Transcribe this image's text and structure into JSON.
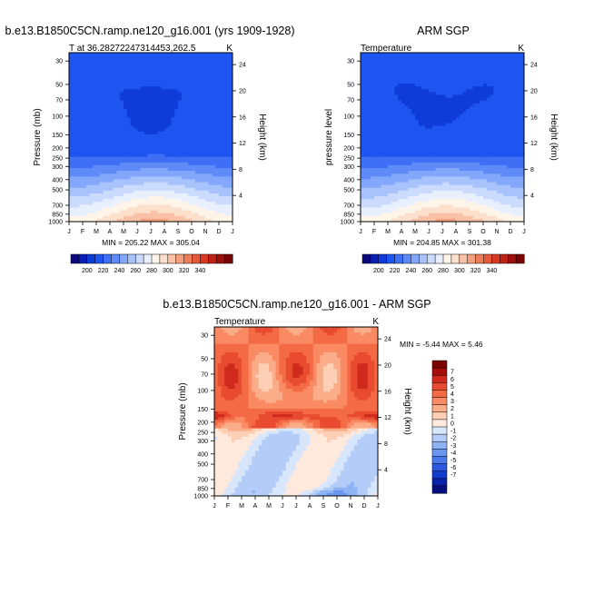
{
  "chart_data": [
    {
      "type": "heatmap",
      "title": "b.e13.B1850C5CN.ramp.ne120_g16.001 (yrs 1909-1928)",
      "subtitle_left": "T at 36.28272247314453,262.5",
      "subtitle_right": "K",
      "xlabel": "",
      "ylabel": "Pressure (mb)",
      "ylabel_right": "Height (km)",
      "x_ticks": [
        "J",
        "F",
        "M",
        "A",
        "M",
        "J",
        "J",
        "A",
        "S",
        "O",
        "N",
        "D",
        "J"
      ],
      "y_ticks": [
        30,
        50,
        70,
        100,
        150,
        200,
        250,
        300,
        400,
        500,
        700,
        850,
        1000
      ],
      "y_range": [
        25,
        1000
      ],
      "height_ticks": [
        4,
        8,
        12,
        16,
        20,
        24
      ],
      "stats": "MIN = 205.22  MAX = 305.04",
      "min": 205.22,
      "max": 305.04,
      "colorbar": {
        "orientation": "horizontal",
        "labels": [
          "200",
          "220",
          "240",
          "260",
          "280",
          "300",
          "320",
          "340"
        ],
        "colors": [
          "#0a0a7c",
          "#0a1fb5",
          "#0f3cd8",
          "#1e55f0",
          "#3e6ff5",
          "#5e8bf7",
          "#83a7fa",
          "#a8c3fc",
          "#cbdbfd",
          "#e8f0fe",
          "#fff4e8",
          "#fde0cc",
          "#f9c2a6",
          "#f4a07e",
          "#ee7d5a",
          "#e65a3c",
          "#d83a24",
          "#bf2216",
          "#9e100c",
          "#7a0404"
        ]
      }
    },
    {
      "type": "heatmap",
      "title": "ARM SGP",
      "subtitle_left": "Temperature",
      "subtitle_right": "K",
      "ylabel": "pressure level",
      "ylabel_right": "Height (km)",
      "x_ticks": [
        "J",
        "F",
        "M",
        "A",
        "M",
        "J",
        "J",
        "A",
        "S",
        "O",
        "N",
        "D",
        "J"
      ],
      "y_ticks": [
        30,
        50,
        70,
        100,
        150,
        200,
        250,
        300,
        400,
        500,
        700,
        850,
        1000
      ],
      "y_range": [
        25,
        1000
      ],
      "height_ticks": [
        4,
        8,
        12,
        16,
        20,
        24
      ],
      "stats": "MIN = 204.85  MAX = 301.38",
      "min": 204.85,
      "max": 301.38,
      "colorbar": {
        "orientation": "horizontal",
        "labels": [
          "200",
          "220",
          "240",
          "260",
          "280",
          "300",
          "320",
          "340"
        ]
      }
    },
    {
      "type": "heatmap",
      "title": "b.e13.B1850C5CN.ramp.ne120_g16.001 - ARM SGP",
      "subtitle_left": "Temperature",
      "subtitle_right": "K",
      "ylabel": "Pressure (mb)",
      "ylabel_right": "Height (km)",
      "x_ticks": [
        "J",
        "F",
        "M",
        "A",
        "M",
        "J",
        "J",
        "A",
        "S",
        "O",
        "N",
        "D",
        "J"
      ],
      "y_ticks": [
        30,
        50,
        70,
        100,
        150,
        200,
        250,
        300,
        400,
        500,
        700,
        850,
        1000
      ],
      "y_range": [
        25,
        1000
      ],
      "height_ticks": [
        4,
        8,
        12,
        16,
        20,
        24
      ],
      "stats": "MIN =  -5.44  MAX =    5.46",
      "min": -5.44,
      "max": 5.46,
      "colorbar": {
        "orientation": "vertical",
        "labels": [
          "7",
          "6",
          "5",
          "4",
          "3",
          "2",
          "1",
          "0",
          "-1",
          "-2",
          "-3",
          "-4",
          "-5",
          "-6",
          "-7"
        ],
        "colors": [
          "#7a0404",
          "#a70e0b",
          "#cf2a1c",
          "#e84b2f",
          "#f46a44",
          "#f98a63",
          "#fbad8a",
          "#fdd0b5",
          "#fee9dc",
          "#d7e6fb",
          "#b3cdf8",
          "#8eb3f4",
          "#6b96ef",
          "#4a78ea",
          "#2c58e0",
          "#143ccc",
          "#0a22a8",
          "#060f7e"
        ]
      }
    }
  ]
}
